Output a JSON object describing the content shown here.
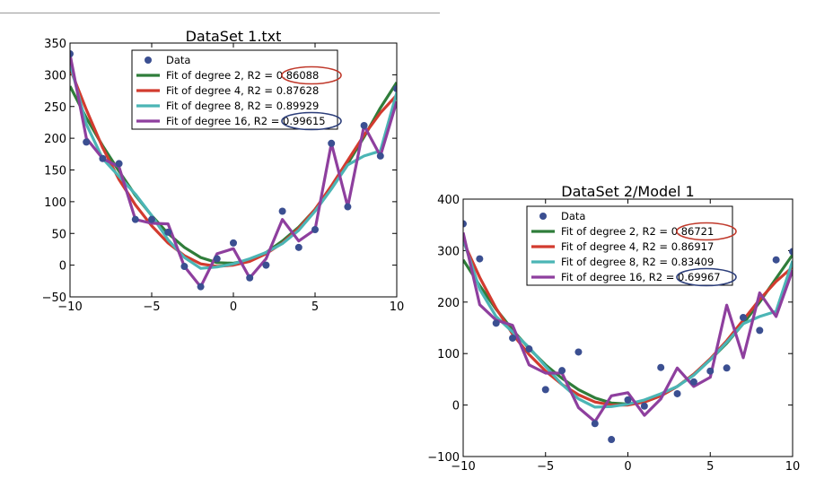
{
  "chart_data": [
    {
      "type": "scatter",
      "title": "DataSet 1.txt",
      "xlabel": "",
      "ylabel": "",
      "xlim": [
        -10,
        10
      ],
      "ylim": [
        -50,
        350
      ],
      "xticks": [
        "−10",
        "−5",
        "0",
        "5",
        "10"
      ],
      "yticks": [
        "350",
        "300",
        "250",
        "200",
        "150",
        "100",
        "50",
        "0",
        "−50"
      ],
      "legend": "top-center",
      "data": {
        "name": "Data",
        "x": [
          -10,
          -9,
          -8,
          -7,
          -6,
          -5,
          -4,
          -3,
          -2,
          -1,
          0,
          1,
          2,
          3,
          4,
          5,
          6,
          7,
          8,
          9,
          10
        ],
        "y": [
          333,
          194,
          168,
          160,
          72,
          72,
          52,
          -2,
          -34,
          10,
          35,
          -20,
          0,
          85,
          28,
          56,
          192,
          92,
          220,
          172,
          278
        ]
      },
      "series": [
        {
          "name": "Fit of degree 2, R2 = ",
          "r2": "0.86088",
          "color": "#2f7d3a",
          "x": [
            -10,
            -9,
            -8,
            -7,
            -6,
            -5,
            -4,
            -3,
            -2,
            -1,
            0,
            1,
            2,
            3,
            4,
            5,
            6,
            7,
            8,
            9,
            10
          ],
          "y": [
            282,
            232,
            188,
            148,
            110,
            78,
            50,
            28,
            12,
            4,
            3,
            8,
            20,
            38,
            60,
            88,
            122,
            160,
            202,
            248,
            288
          ]
        },
        {
          "name": "Fit of degree 4, R2 = ",
          "r2": "0.87628",
          "color": "#d23b2f",
          "x": [
            -10,
            -9,
            -8,
            -7,
            -6,
            -5,
            -4,
            -3,
            -2,
            -1,
            0,
            1,
            2,
            3,
            4,
            5,
            6,
            7,
            8,
            9,
            10
          ],
          "y": [
            310,
            245,
            185,
            135,
            95,
            62,
            35,
            15,
            2,
            -2,
            0,
            6,
            18,
            35,
            58,
            88,
            125,
            165,
            205,
            240,
            268
          ]
        },
        {
          "name": "Fit of degree 8, R2 = ",
          "r2": "0.89929",
          "color": "#4bb5b5",
          "x": [
            -10,
            -9,
            -8,
            -7,
            -6,
            -5,
            -4,
            -3,
            -2,
            -1,
            0,
            1,
            2,
            3,
            4,
            5,
            6,
            7,
            8,
            9,
            10
          ],
          "y": [
            318,
            222,
            168,
            140,
            112,
            78,
            40,
            12,
            -5,
            -3,
            2,
            10,
            20,
            34,
            55,
            85,
            120,
            158,
            172,
            180,
            272
          ]
        },
        {
          "name": "Fit of degree 16, R2 = ",
          "r2": "0.99615",
          "color": "#8e3f9e",
          "x": [
            -10,
            -9,
            -8,
            -7,
            -6,
            -5,
            -4,
            -3,
            -2,
            -1,
            0,
            1,
            2,
            3,
            4,
            5,
            6,
            7,
            8,
            9,
            10
          ],
          "y": [
            332,
            200,
            168,
            155,
            72,
            66,
            65,
            -2,
            -34,
            18,
            26,
            -20,
            10,
            72,
            38,
            56,
            192,
            92,
            220,
            172,
            258
          ]
        }
      ],
      "highlight": [
        {
          "series": 0,
          "color": "#c0392b"
        },
        {
          "series": 3,
          "color": "#2c3e7a"
        }
      ]
    },
    {
      "type": "scatter",
      "title": "DataSet 2/Model 1",
      "xlabel": "",
      "ylabel": "",
      "xlim": [
        -10,
        10
      ],
      "ylim": [
        -100,
        400
      ],
      "xticks": [
        "−10",
        "−5",
        "0",
        "5",
        "10"
      ],
      "yticks": [
        "400",
        "300",
        "200",
        "100",
        "0",
        "−100"
      ],
      "legend": "top-center",
      "data": {
        "name": "Data",
        "x": [
          -10,
          -9,
          -8,
          -7,
          -6,
          -5,
          -4,
          -3,
          -2,
          -1,
          0,
          1,
          2,
          3,
          4,
          5,
          6,
          7,
          8,
          9,
          10
        ],
        "y": [
          352,
          284,
          159,
          130,
          109,
          30,
          67,
          103,
          -36,
          -67,
          10,
          -2,
          73,
          22,
          45,
          66,
          72,
          170,
          145,
          282,
          298
        ]
      },
      "series": [
        {
          "name": "Fit of degree 2, R2 = ",
          "r2": "0.86721",
          "color": "#2f7d3a",
          "x": [
            -10,
            -9,
            -8,
            -7,
            -6,
            -5,
            -4,
            -3,
            -2,
            -1,
            0,
            1,
            2,
            3,
            4,
            5,
            6,
            7,
            8,
            9,
            10
          ],
          "y": [
            282,
            232,
            186,
            146,
            110,
            78,
            52,
            30,
            14,
            4,
            2,
            6,
            18,
            36,
            60,
            88,
            120,
            158,
            200,
            246,
            292
          ]
        },
        {
          "name": "Fit of degree 4, R2 = ",
          "r2": "0.86917",
          "color": "#d23b2f",
          "x": [
            -10,
            -9,
            -8,
            -7,
            -6,
            -5,
            -4,
            -3,
            -2,
            -1,
            0,
            1,
            2,
            3,
            4,
            5,
            6,
            7,
            8,
            9,
            10
          ],
          "y": [
            318,
            248,
            188,
            138,
            98,
            66,
            40,
            20,
            6,
            0,
            0,
            6,
            18,
            36,
            60,
            90,
            125,
            165,
            205,
            240,
            268
          ]
        },
        {
          "name": "Fit of degree 8, R2 = ",
          "r2": "0.83409",
          "color": "#4bb5b5",
          "x": [
            -10,
            -9,
            -8,
            -7,
            -6,
            -5,
            -4,
            -3,
            -2,
            -1,
            0,
            1,
            2,
            3,
            4,
            5,
            6,
            7,
            8,
            9,
            10
          ],
          "y": [
            322,
            225,
            172,
            142,
            112,
            75,
            40,
            12,
            -4,
            -3,
            2,
            10,
            22,
            36,
            58,
            88,
            122,
            158,
            172,
            182,
            280
          ]
        },
        {
          "name": "Fit of degree 16, R2 = ",
          "r2": "0.69967",
          "color": "#8e3f9e",
          "x": [
            -10,
            -9,
            -8,
            -7,
            -6,
            -5,
            -4,
            -3,
            -2,
            -1,
            0,
            1,
            2,
            3,
            4,
            5,
            6,
            7,
            8,
            9,
            10
          ],
          "y": [
            335,
            195,
            165,
            155,
            78,
            62,
            62,
            -5,
            -32,
            18,
            24,
            -20,
            12,
            72,
            36,
            54,
            194,
            92,
            218,
            172,
            262
          ]
        }
      ],
      "highlight": [
        {
          "series": 0,
          "color": "#c0392b"
        },
        {
          "series": 3,
          "color": "#2c3e7a"
        }
      ]
    }
  ]
}
